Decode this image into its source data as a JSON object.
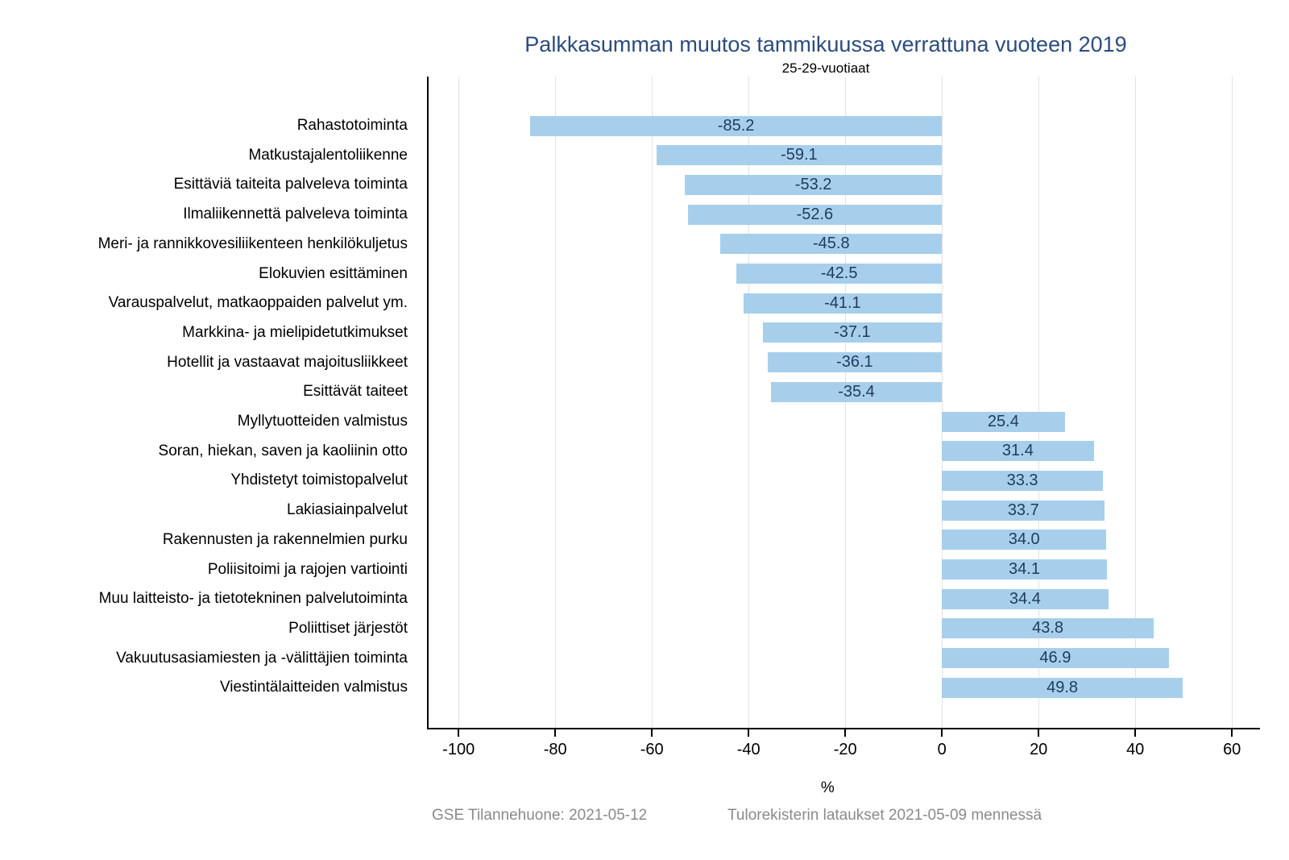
{
  "header": {
    "title": "Palkkasumman muutos tammikuussa verrattuna vuoteen 2019",
    "subtitle": "25-29-vuotiaat"
  },
  "footer": {
    "left": "GSE Tilannehuone: 2021-05-12",
    "right": "Tulorekisterin lataukset 2021-05-09 mennessä"
  },
  "colors": {
    "bar": "#A7CFEB",
    "title_text": "#2B4C7E",
    "value_label_text": "#1F3B5C",
    "axis_text": "#000000",
    "footer_text": "#8A8A8A",
    "gridline": "#E2E2E2",
    "axis_line": "#000000"
  },
  "chart_data": {
    "type": "bar",
    "orientation": "horizontal",
    "title": "Palkkasumman muutos tammikuussa verrattuna vuoteen 2019",
    "subtitle": "25-29-vuotiaat",
    "xlabel": "%",
    "ylabel": "",
    "categories": [
      "Rahastotoiminta",
      "Matkustajalentoliikenne",
      "Esittäviä taiteita palveleva toiminta",
      "Ilmaliikennettä palveleva toiminta",
      "Meri- ja rannikkovesiliikenteen henkilökuljetus",
      "Elokuvien esittäminen",
      "Varauspalvelut, matkaoppaiden palvelut ym.",
      "Markkina- ja mielipidetutkimukset",
      "Hotellit ja vastaavat majoitusliikkeet",
      "Esittävät taiteet",
      "Myllytuotteiden valmistus",
      "Soran, hiekan, saven ja kaoliinin otto",
      "Yhdistetyt toimistopalvelut",
      "Lakiasiainpalvelut",
      "Rakennusten ja rakennelmien purku",
      "Poliisitoimi ja rajojen vartiointi",
      "Muu laitteisto- ja tietotekninen palvelutoiminta",
      "Poliittiset järjestöt",
      "Vakuutusasiamiesten ja -välittäjien toiminta",
      "Viestintälaitteiden valmistus"
    ],
    "values": [
      -85.2,
      -59.1,
      -53.2,
      -52.6,
      -45.8,
      -42.5,
      -41.1,
      -37.1,
      -36.1,
      -35.4,
      25.4,
      31.4,
      33.3,
      33.7,
      34.0,
      34.1,
      34.4,
      43.8,
      46.9,
      49.8
    ],
    "value_labels": [
      "-85.2",
      "-59.1",
      "-53.2",
      "-52.6",
      "-45.8",
      "-42.5",
      "-41.1",
      "-37.1",
      "-36.1",
      "-35.4",
      "25.4",
      "31.4",
      "33.3",
      "33.7",
      "34.0",
      "34.1",
      "34.4",
      "43.8",
      "46.9",
      "49.8"
    ],
    "xticks": [
      -100,
      -80,
      -60,
      -40,
      -20,
      0,
      20,
      40,
      60
    ],
    "xlim": [
      -106.2,
      65.8
    ],
    "grid": "vertical",
    "legend": "none",
    "bar_label_position": "inside-center"
  }
}
